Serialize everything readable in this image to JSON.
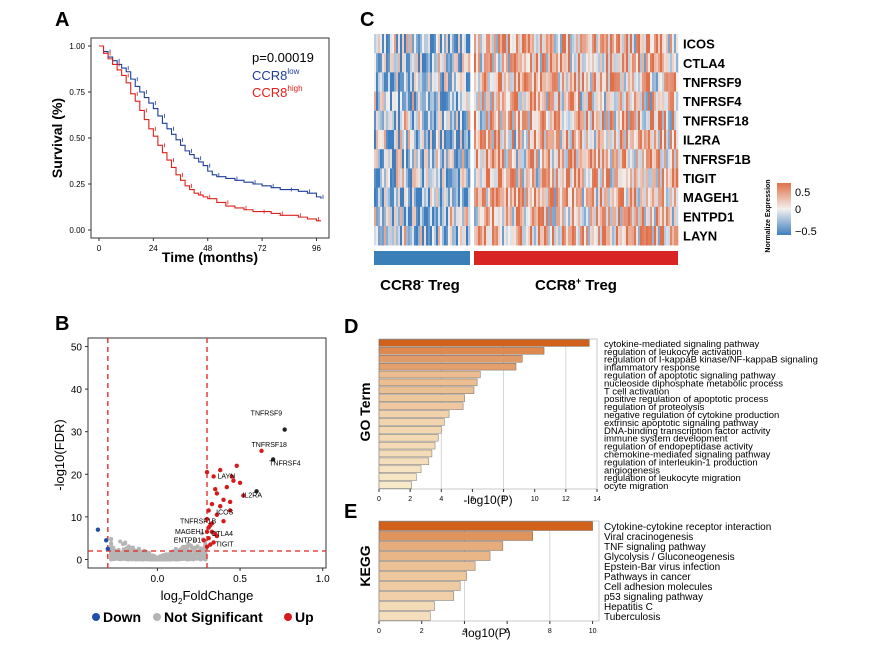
{
  "panels": {
    "A": "A",
    "B": "B",
    "C": "C",
    "D": "D",
    "E": "E"
  },
  "colors": {
    "low": "#1f3d99",
    "high": "#e0201c",
    "down": "#1f4fa8",
    "ns": "#b5b5b5",
    "up": "#d7191c",
    "dash": "#e0201c",
    "hmLow": "#3f7fbf",
    "hmMid": "#f2f0ee",
    "hmHigh": "#e0704a",
    "treg_neg": "#3a7fb8",
    "treg_pos": "#d92424"
  },
  "chart_data": [
    {
      "type": "line",
      "panel": "A",
      "xlabel": "Time (months)",
      "ylabel": "Survival (%)",
      "xticks": [
        "0",
        "24",
        "48",
        "72",
        "96"
      ],
      "yticks": [
        "0.00",
        "0.25",
        "0.50",
        "0.75",
        "1.00"
      ],
      "xlim": [
        0,
        98
      ],
      "ylim": [
        0,
        1
      ],
      "annotation": "p=0.00019",
      "legend": [
        {
          "base": "CCR8",
          "sup": "low"
        },
        {
          "base": "CCR8",
          "sup": "high"
        }
      ],
      "series": [
        {
          "key": "low",
          "x": [
            0,
            2,
            4,
            6,
            8,
            10,
            12,
            14,
            16,
            18,
            20,
            22,
            24,
            26,
            28,
            30,
            32,
            34,
            36,
            38,
            40,
            42,
            44,
            46,
            48,
            50,
            52,
            56,
            60,
            64,
            68,
            72,
            76,
            80,
            84,
            88,
            92,
            96,
            98
          ],
          "y": [
            1.0,
            0.97,
            0.94,
            0.92,
            0.9,
            0.88,
            0.86,
            0.82,
            0.78,
            0.75,
            0.72,
            0.69,
            0.66,
            0.62,
            0.58,
            0.55,
            0.52,
            0.49,
            0.46,
            0.43,
            0.41,
            0.39,
            0.37,
            0.35,
            0.32,
            0.3,
            0.29,
            0.28,
            0.27,
            0.26,
            0.25,
            0.24,
            0.23,
            0.22,
            0.22,
            0.21,
            0.2,
            0.18,
            0.17
          ]
        },
        {
          "key": "high",
          "x": [
            0,
            2,
            4,
            6,
            8,
            10,
            12,
            14,
            16,
            18,
            20,
            22,
            24,
            26,
            28,
            30,
            32,
            34,
            36,
            38,
            40,
            42,
            44,
            46,
            48,
            52,
            56,
            60,
            64,
            68,
            72,
            76,
            80,
            84,
            88,
            92,
            96,
            98
          ],
          "y": [
            1.0,
            0.96,
            0.93,
            0.9,
            0.87,
            0.84,
            0.8,
            0.74,
            0.7,
            0.65,
            0.6,
            0.55,
            0.51,
            0.46,
            0.42,
            0.38,
            0.34,
            0.3,
            0.27,
            0.24,
            0.22,
            0.2,
            0.19,
            0.18,
            0.17,
            0.15,
            0.13,
            0.12,
            0.11,
            0.1,
            0.1,
            0.09,
            0.08,
            0.08,
            0.07,
            0.06,
            0.05,
            0.05
          ]
        }
      ]
    },
    {
      "type": "scatter",
      "panel": "B",
      "xlabel_base": "log",
      "xlabel_sub": "2",
      "xlabel_rest": "FoldChange",
      "ylabel": "-log10(FDR)",
      "xticks": [
        "0.0",
        "0.5",
        "1.0"
      ],
      "yticks": [
        "0",
        "10",
        "20",
        "30",
        "40",
        "50"
      ],
      "xlim": [
        -0.42,
        1.02
      ],
      "ylim": [
        -2,
        52
      ],
      "thresholds": {
        "x": [
          -0.3,
          0.3
        ],
        "y": 2
      },
      "legend": [
        "Down",
        "Not Significant",
        "Up"
      ],
      "labeled_points": [
        {
          "label": "TNFRSF9",
          "x": 0.77,
          "y": 30.5
        },
        {
          "label": "TNFRSF18",
          "x": 0.63,
          "y": 25.5
        },
        {
          "label": "TNFRSF4",
          "x": 0.7,
          "y": 23.5
        },
        {
          "label": "LAYN",
          "x": 0.46,
          "y": 18.5
        },
        {
          "label": "IL2RA",
          "x": 0.6,
          "y": 16.0
        },
        {
          "label": "ICOS",
          "x": 0.44,
          "y": 11.5
        },
        {
          "label": "TNFRSF1B",
          "x": 0.33,
          "y": 8.5
        },
        {
          "label": "MAGEH1",
          "x": 0.3,
          "y": 6.5
        },
        {
          "label": "CTLA4",
          "x": 0.35,
          "y": 6.0
        },
        {
          "label": "ENTPD1",
          "x": 0.28,
          "y": 4.5
        },
        {
          "label": "TIGIT",
          "x": 0.34,
          "y": 4.0
        }
      ],
      "up_points": [
        [
          0.3,
          20.5
        ],
        [
          0.34,
          19.5
        ],
        [
          0.38,
          21.0
        ],
        [
          0.42,
          17.0
        ],
        [
          0.48,
          22.0
        ],
        [
          0.5,
          18.0
        ],
        [
          0.36,
          15.5
        ],
        [
          0.4,
          14.0
        ],
        [
          0.33,
          13.0
        ],
        [
          0.44,
          13.5
        ],
        [
          0.38,
          12.5
        ],
        [
          0.31,
          11.5
        ],
        [
          0.36,
          10.5
        ],
        [
          0.3,
          9.5
        ],
        [
          0.32,
          8.0
        ],
        [
          0.4,
          9.0
        ],
        [
          0.31,
          7.5
        ],
        [
          0.33,
          6.5
        ],
        [
          0.36,
          5.5
        ],
        [
          0.31,
          5.0
        ],
        [
          0.32,
          3.5
        ],
        [
          0.3,
          3.0
        ],
        [
          0.35,
          16.5
        ],
        [
          0.52,
          15.0
        ],
        [
          0.45,
          19.5
        ]
      ],
      "down_points": [
        [
          -0.36,
          7.0
        ],
        [
          -0.31,
          4.5
        ],
        [
          -0.3,
          2.5
        ]
      ]
    },
    {
      "type": "heatmap",
      "panel": "C",
      "genes": [
        "ICOS",
        "CTLA4",
        "TNFRSF9",
        "TNFRSF4",
        "TNFRSF18",
        "IL2RA",
        "TNFRSF1B",
        "TIGIT",
        "MAGEH1",
        "ENTPD1",
        "LAYN"
      ],
      "groups": [
        {
          "base": "CCR8",
          "sup": "-",
          "rest": " Treg"
        },
        {
          "base": "CCR8",
          "sup": "+",
          "rest": " Treg"
        }
      ],
      "legend_title": "Normalize Expression",
      "legend_ticks": [
        "0.5",
        "0",
        "−0.5"
      ],
      "range": [
        -0.5,
        0.5
      ]
    },
    {
      "type": "bar",
      "panel": "D",
      "ylabel": "GO Term",
      "xlabel": "-log10(P)",
      "xticks": [
        "0",
        "2",
        "4",
        "6",
        "8",
        "10",
        "12",
        "14"
      ],
      "xlim": [
        0,
        14
      ],
      "categories": [
        "cytokine-mediated signaling pathway",
        "regulation of leukocyte activation",
        "regulation of I-kappaB kinase/NF-kappaB signaling",
        "inflammatory response",
        "regulation of apoptotic signaling pathway",
        "nucleoside diphosphate metabolic process",
        "T cell activation",
        "positive regulation of apoptotic process",
        "regulation of proteolysis",
        "negative regulation of cytokine production",
        "extrinsic apoptotic signaling pathway",
        "DNA-binding transcription factor activity",
        "immune system development",
        "regulation of endopeptidase activity",
        "chemokine-mediated signaling pathway",
        "regulation of interleukin-1 production",
        "angiogenesis",
        "regulation of leukocyte migration",
        "ocyte migration"
      ],
      "values": [
        13.5,
        10.6,
        9.2,
        8.8,
        6.5,
        6.3,
        6.1,
        5.5,
        5.4,
        4.5,
        4.2,
        4.0,
        3.8,
        3.6,
        3.4,
        3.2,
        2.7,
        2.4,
        2.1
      ]
    },
    {
      "type": "bar",
      "panel": "E",
      "ylabel": "KEGG",
      "xlabel": "-log10(P)",
      "xticks": [
        "0",
        "2",
        "4",
        "6",
        "8",
        "10"
      ],
      "xlim": [
        0,
        10.3
      ],
      "categories": [
        "Cytokine-cytokine receptor interaction",
        "Viral cracinogenesis",
        "TNF signaling pathway",
        "Glycolysis / Gluconeogenesis",
        "Epstein-Bar virus infection",
        "Pathways in cancer",
        "Cell adhesion molecules",
        "p53 signaling pathway",
        "Hepatitis C",
        "Tuberculosis"
      ],
      "values": [
        10.0,
        7.2,
        5.8,
        5.2,
        4.5,
        4.1,
        3.8,
        3.5,
        2.6,
        2.4
      ]
    }
  ]
}
